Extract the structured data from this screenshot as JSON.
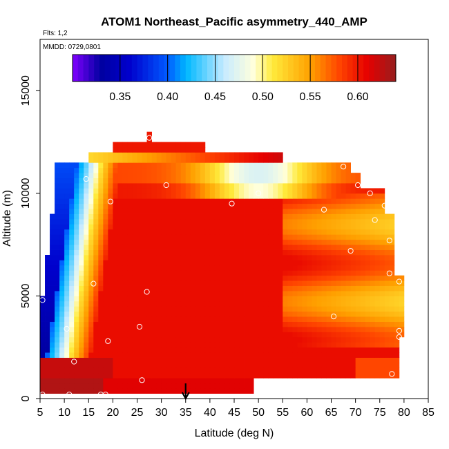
{
  "chart_data": {
    "type": "heatmap",
    "title": "ATOM1 Northeast_Pacific asymmetry_440_AMP",
    "subtitle_flights": "Flts: 1,2",
    "subtitle_dates": "MMDD: 0729,0801",
    "xlabel": "Latitude (deg N)",
    "ylabel": "Altitude (m)",
    "xlim": [
      5,
      85
    ],
    "ylim": [
      0,
      17500
    ],
    "xticks": [
      "5",
      "10",
      "15",
      "20",
      "25",
      "30",
      "35",
      "40",
      "45",
      "50",
      "55",
      "60",
      "65",
      "70",
      "75",
      "80",
      "85"
    ],
    "yticks": [
      "0",
      "5000",
      "10000",
      "15000"
    ],
    "colorbar": {
      "min": 0.3,
      "max": 0.64,
      "ticks": [
        "0.35",
        "0.40",
        "0.45",
        "0.50",
        "0.55",
        "0.60"
      ]
    },
    "marker_latitude": 35,
    "sample_points": [
      [
        5.5,
        200
      ],
      [
        11,
        200
      ],
      [
        17.5,
        200
      ],
      [
        18.5,
        200
      ],
      [
        26,
        900
      ],
      [
        12,
        1800
      ],
      [
        19,
        2800
      ],
      [
        25.5,
        3500
      ],
      [
        10.5,
        3400
      ],
      [
        27,
        5200
      ],
      [
        5.5,
        4800
      ],
      [
        16,
        5600
      ],
      [
        65.5,
        4000
      ],
      [
        77.5,
        1200
      ],
      [
        79,
        3000
      ],
      [
        79,
        3300
      ],
      [
        79,
        5700
      ],
      [
        77,
        6100
      ],
      [
        69,
        7200
      ],
      [
        77,
        7700
      ],
      [
        74,
        8700
      ],
      [
        76,
        9400
      ],
      [
        77,
        9800
      ],
      [
        73,
        10000
      ],
      [
        70.5,
        10400
      ],
      [
        67.5,
        11300
      ],
      [
        63.5,
        9200
      ],
      [
        50,
        10000
      ],
      [
        44.5,
        9500
      ],
      [
        31,
        10400
      ],
      [
        19.5,
        9600
      ],
      [
        14.5,
        10700
      ],
      [
        27.5,
        12700
      ]
    ]
  }
}
